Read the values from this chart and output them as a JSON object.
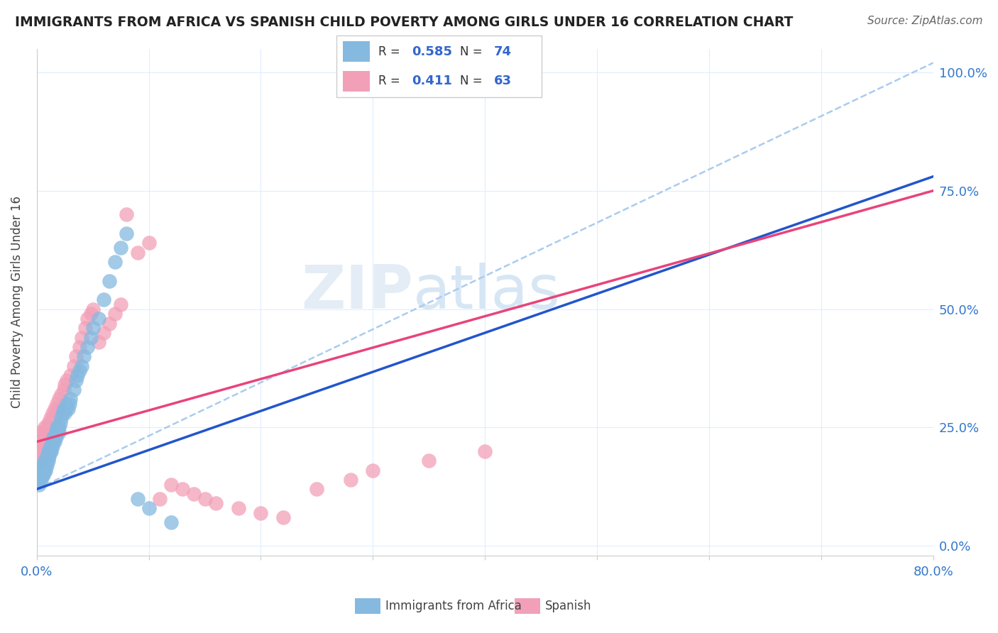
{
  "title": "IMMIGRANTS FROM AFRICA VS SPANISH CHILD POVERTY AMONG GIRLS UNDER 16 CORRELATION CHART",
  "source": "Source: ZipAtlas.com",
  "ylabel": "Child Poverty Among Girls Under 16",
  "legend_label1": "Immigrants from Africa",
  "legend_label2": "Spanish",
  "r1": "0.585",
  "n1": "74",
  "r2": "0.411",
  "n2": "63",
  "watermark": "ZIPatlas",
  "color_blue": "#85b9e0",
  "color_pink": "#f2a0b8",
  "color_blue_line": "#2255cc",
  "color_pink_line": "#e8447a",
  "color_dashed_line": "#aaccee",
  "blue_x": [
    0.001,
    0.002,
    0.002,
    0.003,
    0.003,
    0.003,
    0.004,
    0.004,
    0.004,
    0.005,
    0.005,
    0.005,
    0.006,
    0.006,
    0.006,
    0.007,
    0.007,
    0.007,
    0.008,
    0.008,
    0.008,
    0.009,
    0.009,
    0.009,
    0.01,
    0.01,
    0.01,
    0.011,
    0.011,
    0.012,
    0.012,
    0.013,
    0.013,
    0.014,
    0.014,
    0.015,
    0.015,
    0.016,
    0.016,
    0.017,
    0.017,
    0.018,
    0.018,
    0.019,
    0.02,
    0.02,
    0.021,
    0.022,
    0.023,
    0.024,
    0.025,
    0.026,
    0.027,
    0.028,
    0.029,
    0.03,
    0.033,
    0.035,
    0.036,
    0.038,
    0.04,
    0.042,
    0.045,
    0.048,
    0.05,
    0.055,
    0.06,
    0.065,
    0.07,
    0.075,
    0.08,
    0.09,
    0.1,
    0.12
  ],
  "blue_y": [
    0.14,
    0.13,
    0.15,
    0.14,
    0.15,
    0.16,
    0.15,
    0.16,
    0.14,
    0.16,
    0.15,
    0.17,
    0.16,
    0.17,
    0.15,
    0.17,
    0.16,
    0.18,
    0.17,
    0.18,
    0.16,
    0.18,
    0.17,
    0.19,
    0.18,
    0.19,
    0.2,
    0.19,
    0.2,
    0.2,
    0.21,
    0.2,
    0.21,
    0.21,
    0.22,
    0.22,
    0.23,
    0.22,
    0.23,
    0.23,
    0.24,
    0.24,
    0.25,
    0.25,
    0.24,
    0.25,
    0.26,
    0.27,
    0.28,
    0.29,
    0.28,
    0.29,
    0.3,
    0.29,
    0.3,
    0.31,
    0.33,
    0.35,
    0.36,
    0.37,
    0.38,
    0.4,
    0.42,
    0.44,
    0.46,
    0.48,
    0.52,
    0.56,
    0.6,
    0.63,
    0.66,
    0.1,
    0.08,
    0.05
  ],
  "pink_x": [
    0.001,
    0.002,
    0.002,
    0.003,
    0.003,
    0.004,
    0.004,
    0.005,
    0.005,
    0.006,
    0.006,
    0.007,
    0.007,
    0.008,
    0.008,
    0.009,
    0.009,
    0.01,
    0.011,
    0.012,
    0.013,
    0.014,
    0.015,
    0.016,
    0.017,
    0.018,
    0.019,
    0.02,
    0.022,
    0.024,
    0.025,
    0.027,
    0.03,
    0.033,
    0.035,
    0.038,
    0.04,
    0.043,
    0.045,
    0.048,
    0.05,
    0.055,
    0.06,
    0.065,
    0.07,
    0.075,
    0.08,
    0.09,
    0.1,
    0.11,
    0.12,
    0.13,
    0.14,
    0.15,
    0.16,
    0.18,
    0.2,
    0.22,
    0.25,
    0.28,
    0.3,
    0.35,
    0.4
  ],
  "pink_y": [
    0.2,
    0.22,
    0.18,
    0.21,
    0.24,
    0.22,
    0.19,
    0.23,
    0.2,
    0.22,
    0.24,
    0.23,
    0.25,
    0.24,
    0.22,
    0.25,
    0.23,
    0.26,
    0.25,
    0.27,
    0.26,
    0.28,
    0.27,
    0.29,
    0.28,
    0.3,
    0.29,
    0.31,
    0.32,
    0.33,
    0.34,
    0.35,
    0.36,
    0.38,
    0.4,
    0.42,
    0.44,
    0.46,
    0.48,
    0.49,
    0.5,
    0.43,
    0.45,
    0.47,
    0.49,
    0.51,
    0.7,
    0.62,
    0.64,
    0.1,
    0.13,
    0.12,
    0.11,
    0.1,
    0.09,
    0.08,
    0.07,
    0.06,
    0.12,
    0.14,
    0.16,
    0.18,
    0.2
  ],
  "xlim": [
    0.0,
    0.8
  ],
  "ylim": [
    -0.02,
    1.05
  ],
  "blue_line_x": [
    0.0,
    0.8
  ],
  "blue_line_y": [
    0.12,
    0.78
  ],
  "pink_line_x": [
    0.0,
    0.8
  ],
  "pink_line_y": [
    0.22,
    0.75
  ],
  "dashed_line_x": [
    0.0,
    0.8
  ],
  "dashed_line_y": [
    0.12,
    1.02
  ],
  "ytick_positions": [
    0.0,
    0.25,
    0.5,
    0.75,
    1.0
  ],
  "ytick_labels": [
    "0.0%",
    "25.0%",
    "50.0%",
    "75.0%",
    "100.0%"
  ],
  "xtick_show": {
    "0.0": "0.0%",
    "0.8": "80.0%"
  }
}
